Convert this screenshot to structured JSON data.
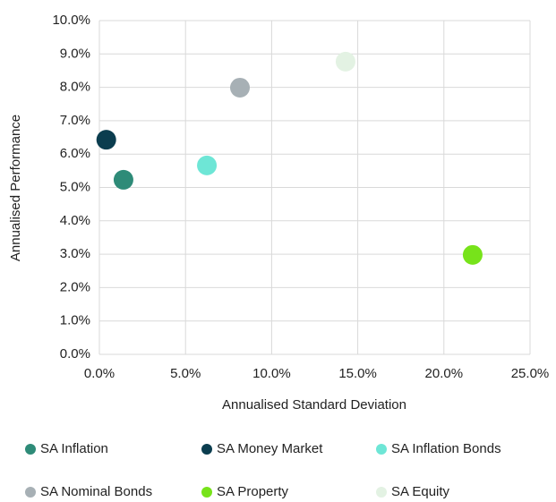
{
  "chart_data": {
    "type": "scatter",
    "x_label": "Annualised Standard Deviation",
    "y_label": "Annualised Performance",
    "series": [
      {
        "name": "SA Inflation",
        "color": "#2e8b78",
        "x": [
          1.4
        ],
        "values": [
          5.23
        ]
      },
      {
        "name": "SA Money Market",
        "color": "#0b3d4f",
        "x": [
          0.4
        ],
        "values": [
          6.43
        ]
      },
      {
        "name": "SA Inflation Bonds",
        "color": "#6ee6d6",
        "x": [
          6.24
        ],
        "values": [
          5.66
        ]
      },
      {
        "name": "SA Nominal Bonds",
        "color": "#a7b0b5",
        "x": [
          8.16
        ],
        "values": [
          7.99
        ]
      },
      {
        "name": "SA Property",
        "color": "#77e31a",
        "x": [
          21.67
        ],
        "values": [
          2.98
        ]
      },
      {
        "name": "SA Equity",
        "color": "#e3f2e3",
        "x": [
          14.29
        ],
        "values": [
          8.77
        ]
      }
    ],
    "xlim": [
      0,
      25
    ],
    "xticks": [
      {
        "value": 0,
        "label": "0.0%"
      },
      {
        "value": 5,
        "label": "5.0%"
      },
      {
        "value": 10,
        "label": "10.0%"
      },
      {
        "value": 15,
        "label": "15.0%"
      },
      {
        "value": 20,
        "label": "20.0%"
      },
      {
        "value": 25,
        "label": "25.0%"
      }
    ],
    "ylim": [
      0,
      10
    ],
    "yticks": [
      {
        "value": 0,
        "label": "0.0%"
      },
      {
        "value": 1,
        "label": "1.0%"
      },
      {
        "value": 2,
        "label": "2.0%"
      },
      {
        "value": 3,
        "label": "3.0%"
      },
      {
        "value": 4,
        "label": "4.0%"
      },
      {
        "value": 5,
        "label": "5.0%"
      },
      {
        "value": 6,
        "label": "6.0%"
      },
      {
        "value": 7,
        "label": "7.0%"
      },
      {
        "value": 8,
        "label": "8.0%"
      },
      {
        "value": 9,
        "label": "9.0%"
      },
      {
        "value": 10,
        "label": "10.0%"
      }
    ],
    "grid": true,
    "legend": "bottom"
  }
}
